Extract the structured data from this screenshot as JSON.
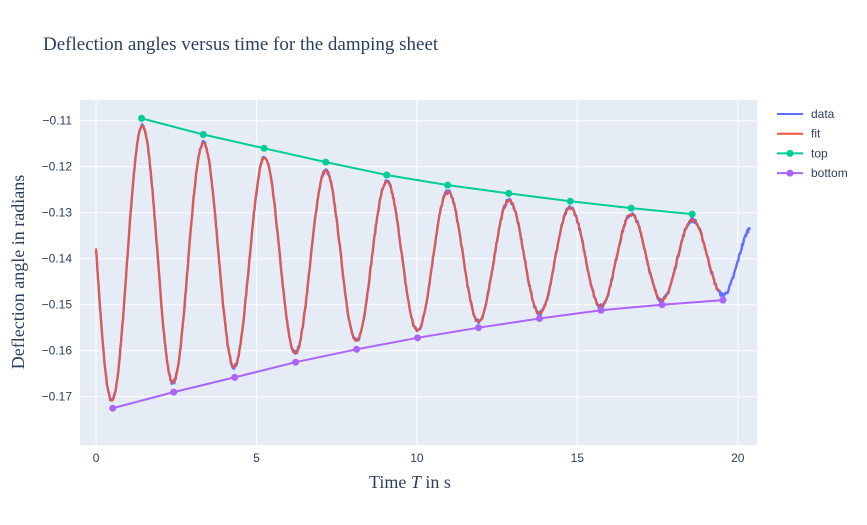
{
  "chart_data": {
    "type": "line",
    "title": "Deflection angles versus time for the damping sheet",
    "xlabel": "Time T in s",
    "xlabel_parts": {
      "pre": "Time ",
      "var": "T",
      "post": " in s"
    },
    "ylabel": "Deflection angle  in radians",
    "xlim": [
      -0.5,
      20.6
    ],
    "ylim": [
      -0.1805,
      -0.1055
    ],
    "xticks": [
      0,
      5,
      10,
      15,
      20
    ],
    "xtick_labels": [
      "0",
      "5",
      "10",
      "15",
      "20"
    ],
    "yticks": [
      -0.17,
      -0.16,
      -0.15,
      -0.14,
      -0.13,
      -0.12,
      -0.11
    ],
    "ytick_labels": [
      "−0.17",
      "−0.16",
      "−0.15",
      "−0.14",
      "−0.13",
      "−0.12",
      "−0.11"
    ],
    "grid": true,
    "legend_position": "right",
    "series": [
      {
        "name": "data",
        "color": "#636efa",
        "mode": "lines",
        "model": {
          "center": -0.14,
          "amp0": 0.032,
          "decay": 0.0717,
          "period": 1.905,
          "peak_time": 1.45,
          "t_start": 0.0,
          "t_end": 20.4
        }
      },
      {
        "name": "fit",
        "color": "#ef553b",
        "mode": "lines",
        "model": {
          "center": -0.14,
          "amp0": 0.032,
          "decay": 0.0717,
          "period": 1.905,
          "peak_time": 1.45,
          "t_start": 0.0,
          "t_end": 19.4
        }
      },
      {
        "name": "top",
        "color": "#00cc96",
        "mode": "lines+markers",
        "x": [
          1.42,
          3.34,
          5.24,
          7.16,
          9.06,
          10.96,
          12.86,
          14.78,
          16.68,
          18.58
        ],
        "y": [
          -0.1095,
          -0.113,
          -0.116,
          -0.119,
          -0.1218,
          -0.124,
          -0.1258,
          -0.1275,
          -0.129,
          -0.1303
        ]
      },
      {
        "name": "bottom",
        "color": "#ab63fa",
        "mode": "lines+markers",
        "x": [
          0.52,
          2.42,
          4.32,
          6.22,
          8.12,
          10.02,
          11.92,
          13.82,
          15.74,
          17.64,
          19.54
        ],
        "y": [
          -0.1725,
          -0.169,
          -0.1658,
          -0.1625,
          -0.1597,
          -0.1572,
          -0.155,
          -0.153,
          -0.1512,
          -0.15,
          -0.149
        ]
      }
    ]
  }
}
